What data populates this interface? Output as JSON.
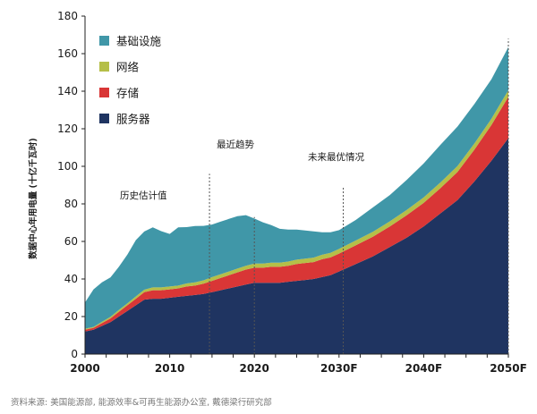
{
  "chart_data": {
    "type": "area",
    "stacked": true,
    "ylabel": "数据中心年用电量 (十亿千瓦时)",
    "ylim": [
      0,
      180
    ],
    "yticks": [
      0,
      20,
      40,
      60,
      80,
      100,
      120,
      140,
      160,
      180
    ],
    "xlim": [
      2000,
      2050
    ],
    "xticks": [
      {
        "value": 2000,
        "label": "2000"
      },
      {
        "value": 2010,
        "label": "2010"
      },
      {
        "value": 2020,
        "label": "2020"
      },
      {
        "value": 2030,
        "label": "2030F"
      },
      {
        "value": 2040,
        "label": "2040F"
      },
      {
        "value": 2050,
        "label": "2050F"
      }
    ],
    "source": "资料来源: 美国能源部, 能源效率&可再生能源办公室, 戴德梁行研究部",
    "annotations": [
      {
        "text": "历史估计值",
        "x": 2000
      },
      {
        "text": "最近趋势",
        "x": 2014
      },
      {
        "text": "未来最优情况",
        "x": 2029
      }
    ],
    "x": [
      2000,
      2001,
      2002,
      2003,
      2004,
      2005,
      2006,
      2007,
      2008,
      2009,
      2010,
      2011,
      2012,
      2013,
      2014,
      2015,
      2016,
      2017,
      2018,
      2019,
      2020,
      2021,
      2022,
      2023,
      2024,
      2025,
      2026,
      2027,
      2028,
      2029,
      2030,
      2032,
      2034,
      2036,
      2038,
      2040,
      2042,
      2044,
      2046,
      2048,
      2050
    ],
    "series": [
      {
        "name": "服务器",
        "color": "#1f3461",
        "values": [
          12,
          13,
          15,
          17,
          20,
          23,
          26,
          29,
          29.5,
          29.5,
          30,
          30.5,
          31,
          31.5,
          32,
          33,
          34,
          35,
          36,
          37,
          38,
          38,
          38,
          38,
          38.5,
          39,
          39.5,
          40,
          41,
          42,
          44,
          48,
          52,
          57,
          62,
          68,
          75,
          82,
          92,
          103,
          115
        ]
      },
      {
        "name": "存储",
        "color": "#d93636",
        "values": [
          1,
          1,
          1.5,
          2,
          2.5,
          3,
          3.5,
          4,
          4.5,
          4.5,
          4.5,
          4.5,
          5,
          5,
          5.5,
          6,
          6.5,
          7,
          7.5,
          8,
          8,
          8,
          8.5,
          8.5,
          8.5,
          9,
          9,
          9,
          9.5,
          9.5,
          9.5,
          10,
          10.5,
          11,
          12,
          12.5,
          13.5,
          15,
          17,
          19,
          22
        ]
      },
      {
        "name": "网络",
        "color": "#b5bf48",
        "values": [
          0.5,
          0.5,
          0.7,
          0.8,
          1,
          1,
          1.2,
          1.3,
          1.5,
          1.5,
          1.5,
          1.5,
          1.6,
          1.7,
          1.8,
          2,
          2,
          2,
          2,
          2,
          2.2,
          2.2,
          2.2,
          2.2,
          2.3,
          2.3,
          2.3,
          2.4,
          2.4,
          2.4,
          2.5,
          2.5,
          2.6,
          2.7,
          2.8,
          3,
          3,
          3.2,
          3.3,
          3.4,
          3.5
        ]
      },
      {
        "name": "基础设施",
        "color": "#4097a8",
        "values": [
          14,
          20,
          21,
          21,
          23,
          26,
          30,
          31,
          32,
          30,
          28,
          31,
          30,
          30,
          29,
          28,
          28,
          28,
          28,
          27,
          24,
          22,
          20,
          18,
          17,
          16,
          15,
          14,
          12,
          11,
          10,
          11,
          13,
          14,
          16,
          18,
          20,
          21,
          21,
          21,
          23
        ]
      }
    ],
    "legend": {
      "position": "top-left"
    }
  }
}
